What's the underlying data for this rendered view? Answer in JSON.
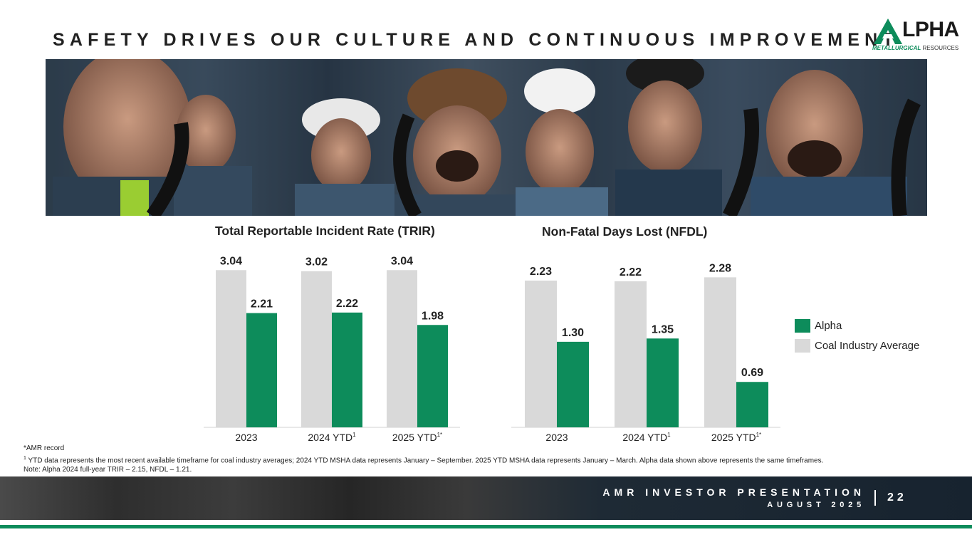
{
  "slide": {
    "title": "SAFETY DRIVES OUR CULTURE AND CONTINUOUS IMPROVEMENT"
  },
  "logo": {
    "wordmark": "LPHA",
    "sub_bold": "METALLURGICAL",
    "sub_rest": " RESOURCES"
  },
  "colors": {
    "alpha": "#0d8c5b",
    "industry": "#d9d9d9",
    "text": "#222222",
    "footer_accent": "#0d8c5b"
  },
  "chart_data": [
    {
      "type": "bar",
      "title": "Total Reportable Incident Rate (TRIR)",
      "categories": [
        "2023",
        "2024 YTD",
        "2025 YTD"
      ],
      "category_superscripts": [
        "",
        "1",
        "1*"
      ],
      "series": [
        {
          "name": "Coal Industry Average",
          "values": [
            3.04,
            3.02,
            3.04
          ]
        },
        {
          "name": "Alpha",
          "values": [
            2.21,
            2.22,
            1.98
          ]
        }
      ],
      "ylim": [
        0,
        3.5
      ],
      "grid": false
    },
    {
      "type": "bar",
      "title": "Non-Fatal Days Lost (NFDL)",
      "categories": [
        "2023",
        "2024 YTD",
        "2025 YTD"
      ],
      "category_superscripts": [
        "",
        "1",
        "1*"
      ],
      "series": [
        {
          "name": "Coal Industry Average",
          "values": [
            2.23,
            2.22,
            2.28
          ]
        },
        {
          "name": "Alpha",
          "values": [
            1.3,
            1.35,
            0.69
          ]
        }
      ],
      "ylim": [
        0,
        2.6
      ],
      "grid": false
    }
  ],
  "legend": {
    "items": [
      {
        "label": "Alpha"
      },
      {
        "label": "Coal Industry Average"
      }
    ],
    "placement": "right"
  },
  "footnotes": {
    "line1": "*AMR record",
    "line2_sup": "1",
    "line2": " YTD data represents the most recent available timeframe for coal industry averages; 2024 YTD MSHA data represents January – September. 2025 YTD MSHA data represents January – March. Alpha data shown above represents the same timeframes.",
    "line3": "Note: Alpha 2024 full-year TRIR – 2.15, NFDL – 1.21."
  },
  "footer": {
    "title": "AMR INVESTOR PRESENTATION",
    "date": "AUGUST 2025",
    "page": "22"
  }
}
